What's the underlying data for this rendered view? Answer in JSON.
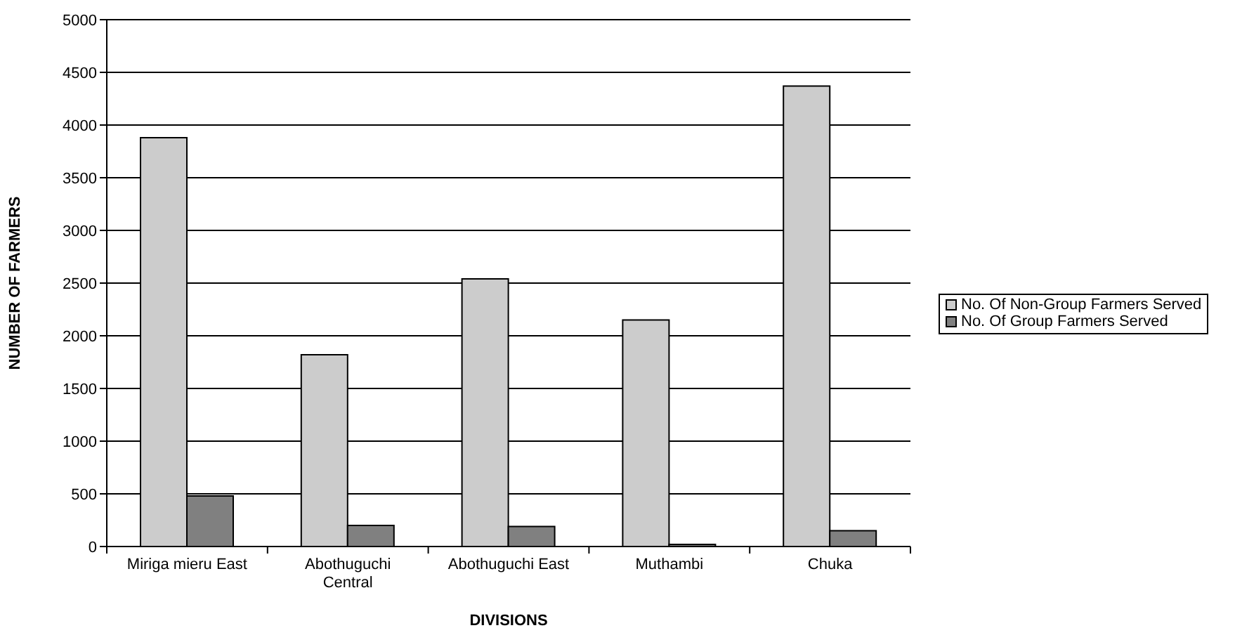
{
  "chart_data": {
    "type": "bar",
    "xlabel": "DIVISIONS",
    "ylabel": "NUMBER OF FARMERS",
    "categories": [
      "Miriga mieru East",
      "Abothuguchi Central",
      "Abothuguchi East",
      "Muthambi",
      "Chuka"
    ],
    "series": [
      {
        "name": "No. Of Non-Group Farmers Served",
        "color": "#cccccc",
        "values": [
          3880,
          1820,
          2540,
          2150,
          4370
        ]
      },
      {
        "name": "No. Of Group Farmers Served",
        "color": "#808080",
        "values": [
          480,
          200,
          190,
          20,
          150
        ]
      }
    ],
    "ylim": [
      0,
      5000
    ],
    "yticks": [
      0,
      500,
      1000,
      1500,
      2000,
      2500,
      3000,
      3500,
      4000,
      4500,
      5000
    ],
    "grid": "y",
    "legend": "right"
  }
}
